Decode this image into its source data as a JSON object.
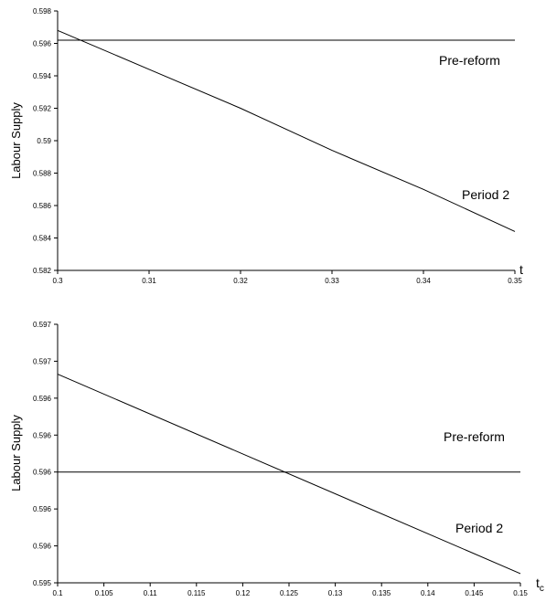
{
  "chart_data": [
    {
      "type": "line",
      "ylabel": "Labour Supply",
      "xvar": "t",
      "xlim": [
        0.3,
        0.35
      ],
      "ylim": [
        0.582,
        0.598
      ],
      "x_ticks": [
        "0.3",
        "0.31",
        "0.32",
        "0.33",
        "0.34",
        "0.35"
      ],
      "y_ticks": [
        "0.582",
        "0.584",
        "0.586",
        "0.588",
        "0.59",
        "0.592",
        "0.594",
        "0.596",
        "0.598"
      ],
      "series": [
        {
          "name": "Pre-reform",
          "x": [
            0.3,
            0.35
          ],
          "y": [
            0.5962,
            0.5962
          ]
        },
        {
          "name": "Period 2",
          "x": [
            0.3,
            0.31,
            0.32,
            0.33,
            0.34,
            0.35
          ],
          "y": [
            0.5968,
            0.5944,
            0.592,
            0.5894,
            0.587,
            0.5844
          ]
        }
      ]
    },
    {
      "type": "line",
      "ylabel": "Labour Supply",
      "xvar": "t",
      "xvar_sub": "c",
      "xlim": [
        0.1,
        0.15
      ],
      "ylim": [
        0,
        7
      ],
      "x_ticks": [
        "0.1",
        "0.105",
        "0.11",
        "0.115",
        "0.12",
        "0.125",
        "0.13",
        "0.135",
        "0.14",
        "0.145",
        "0.15"
      ],
      "y_ticks": [
        "0.595",
        "0.596",
        "0.596",
        "0.596",
        "0.596",
        "0.596",
        "0.597",
        "0.597"
      ],
      "series": [
        {
          "name": "Pre-reform",
          "x": [
            0.1,
            0.15
          ],
          "y": [
            3,
            3
          ]
        },
        {
          "name": "Period 2",
          "x": [
            0.1,
            0.15
          ],
          "y": [
            5.65,
            0.25
          ]
        }
      ]
    }
  ]
}
